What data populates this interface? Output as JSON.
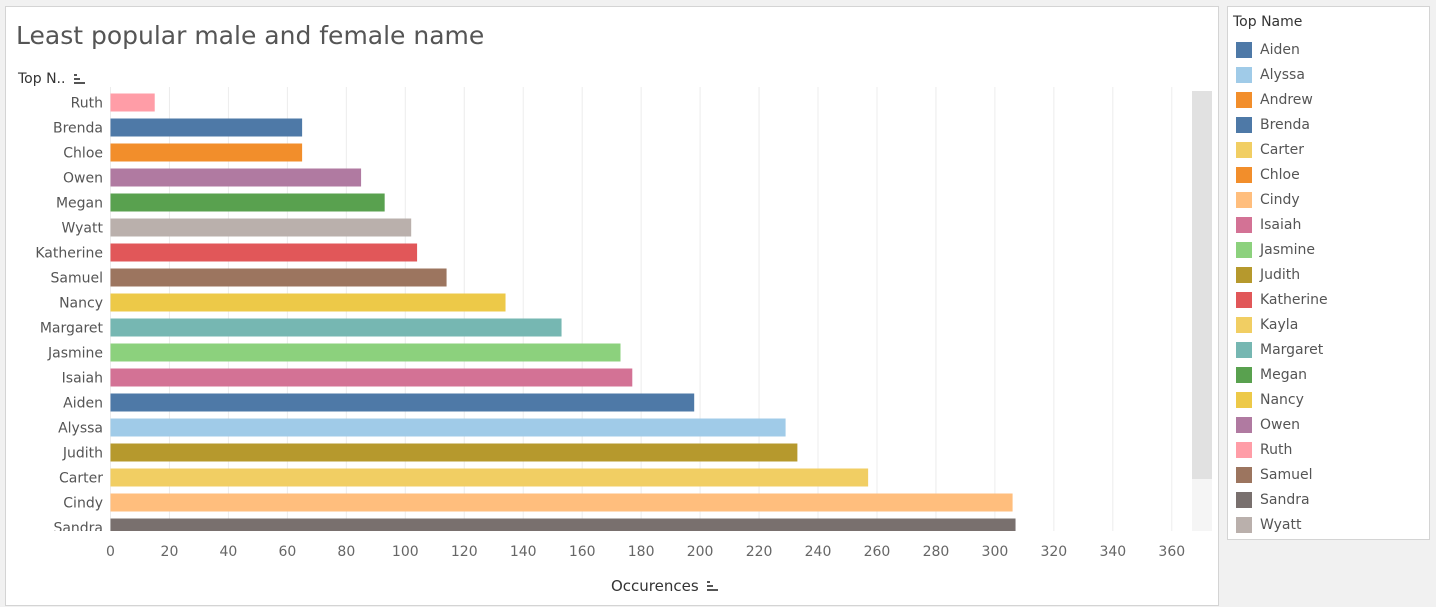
{
  "chart_data": {
    "type": "bar",
    "orientation": "horizontal",
    "title": "Least popular male and female name",
    "row_header": "Top N..",
    "xlabel": "Occurences",
    "xlim": [
      0,
      370
    ],
    "x_ticks": [
      0,
      20,
      40,
      60,
      80,
      100,
      120,
      140,
      160,
      180,
      200,
      220,
      240,
      260,
      280,
      300,
      320,
      340,
      360
    ],
    "grid": true,
    "legend_position": "right",
    "categories": [
      "Ruth",
      "Brenda",
      "Chloe",
      "Owen",
      "Megan",
      "Wyatt",
      "Katherine",
      "Samuel",
      "Nancy",
      "Margaret",
      "Jasmine",
      "Isaiah",
      "Aiden",
      "Alyssa",
      "Judith",
      "Carter",
      "Cindy",
      "Sandra"
    ],
    "values": [
      15,
      65,
      65,
      85,
      93,
      102,
      104,
      114,
      134,
      153,
      173,
      177,
      198,
      229,
      233,
      257,
      306,
      307
    ],
    "bar_colors": [
      "#ff9da7",
      "#4e79a7",
      "#f28e2b",
      "#b07aa1",
      "#59a14f",
      "#bab0ac",
      "#e15759",
      "#9c755f",
      "#edc948",
      "#76b7b2",
      "#8cd17d",
      "#d37295",
      "#4e79a7",
      "#a0cbe8",
      "#b6992d",
      "#f1ce63",
      "#ffbe7d",
      "#79706e"
    ]
  },
  "legend": {
    "title": "Top Name",
    "items": [
      {
        "label": "Aiden",
        "color": "#4e79a7"
      },
      {
        "label": "Alyssa",
        "color": "#a0cbe8"
      },
      {
        "label": "Andrew",
        "color": "#f28e2b"
      },
      {
        "label": "Brenda",
        "color": "#4e79a7"
      },
      {
        "label": "Carter",
        "color": "#f1ce63"
      },
      {
        "label": "Chloe",
        "color": "#f28e2b"
      },
      {
        "label": "Cindy",
        "color": "#ffbe7d"
      },
      {
        "label": "Isaiah",
        "color": "#d37295"
      },
      {
        "label": "Jasmine",
        "color": "#8cd17d"
      },
      {
        "label": "Judith",
        "color": "#b6992d"
      },
      {
        "label": "Katherine",
        "color": "#e15759"
      },
      {
        "label": "Kayla",
        "color": "#f1ce63"
      },
      {
        "label": "Margaret",
        "color": "#76b7b2"
      },
      {
        "label": "Megan",
        "color": "#59a14f"
      },
      {
        "label": "Nancy",
        "color": "#edc948"
      },
      {
        "label": "Owen",
        "color": "#b07aa1"
      },
      {
        "label": "Ruth",
        "color": "#ff9da7"
      },
      {
        "label": "Samuel",
        "color": "#9c755f"
      },
      {
        "label": "Sandra",
        "color": "#79706e"
      },
      {
        "label": "Wyatt",
        "color": "#bab0ac"
      }
    ]
  }
}
